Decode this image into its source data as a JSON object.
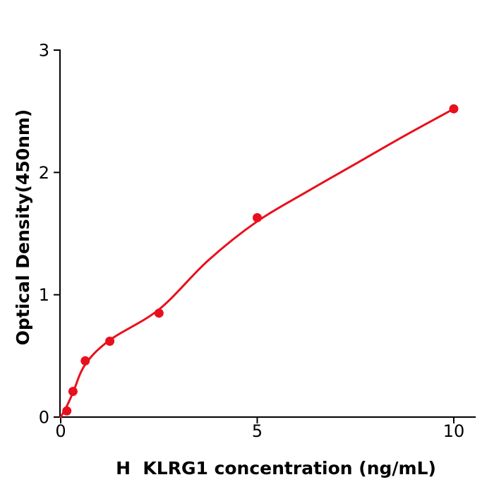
{
  "figure": {
    "background_color": "#ffffff",
    "axis_color": "#000000",
    "accent_red": "#e8101c"
  },
  "chart_data": {
    "type": "scatter",
    "title": "",
    "xlabel": "H  KLRG1 concentration (ng/mL)",
    "ylabel": "Optical Density(450nm)",
    "xlim": [
      0,
      10.55
    ],
    "ylim": [
      0,
      3
    ],
    "xticks": [
      0,
      5,
      10
    ],
    "yticks": [
      0,
      1,
      2,
      3
    ],
    "grid": false,
    "legend_position": "none",
    "marker_color": "#e8101c",
    "line_color": "#e8101c",
    "points": [
      {
        "x": 0.156,
        "y": 0.05
      },
      {
        "x": 0.3125,
        "y": 0.21
      },
      {
        "x": 0.625,
        "y": 0.46
      },
      {
        "x": 1.25,
        "y": 0.62
      },
      {
        "x": 2.5,
        "y": 0.85
      },
      {
        "x": 5,
        "y": 1.63
      },
      {
        "x": 10,
        "y": 2.52
      }
    ],
    "fit_curve_samples": [
      {
        "x": 0,
        "y": 0.0
      },
      {
        "x": 0.156,
        "y": 0.09
      },
      {
        "x": 0.3125,
        "y": 0.2
      },
      {
        "x": 0.625,
        "y": 0.43
      },
      {
        "x": 1.25,
        "y": 0.63
      },
      {
        "x": 2.5,
        "y": 0.88
      },
      {
        "x": 3.75,
        "y": 1.28
      },
      {
        "x": 5,
        "y": 1.6
      },
      {
        "x": 6.25,
        "y": 1.84
      },
      {
        "x": 7.5,
        "y": 2.07
      },
      {
        "x": 8.75,
        "y": 2.3
      },
      {
        "x": 10,
        "y": 2.52
      }
    ]
  }
}
